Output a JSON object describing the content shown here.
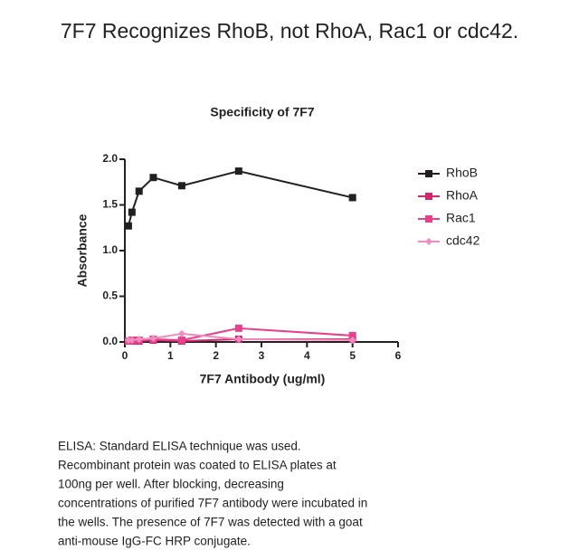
{
  "header": {
    "title": "7F7 Recognizes RhoB, not RhoA, Rac1 or cdc42."
  },
  "chart_data": {
    "type": "line",
    "title": "Specificity of 7F7",
    "x_label": "7F7 Antibody (ug/ml)",
    "y_label": "Absorbance",
    "x": [
      0.078,
      0.156,
      0.3125,
      0.625,
      1.25,
      2.5,
      5
    ],
    "series": [
      {
        "name": "RhoB",
        "color": "#231f20",
        "marker": "square",
        "values": [
          1.27,
          1.42,
          1.65,
          1.8,
          1.71,
          1.87,
          1.58
        ]
      },
      {
        "name": "RhoA",
        "color": "#d6246e",
        "marker": "square",
        "values": [
          0.01,
          0.01,
          0.01,
          0.02,
          0.01,
          0.03,
          0.03
        ]
      },
      {
        "name": "Rac1",
        "color": "#e8408a",
        "marker": "square",
        "values": [
          0.01,
          0.02,
          0.02,
          0.03,
          0.02,
          0.15,
          0.07
        ]
      },
      {
        "name": "cdc42",
        "color": "#f08cbe",
        "marker": "diamond",
        "values": [
          0.02,
          0.02,
          0.03,
          0.04,
          0.09,
          0.03,
          0.02
        ]
      }
    ],
    "xlim": [
      0,
      6
    ],
    "xticks": [
      0,
      1,
      2,
      3,
      4,
      5,
      6
    ],
    "ylim": [
      0,
      2
    ],
    "yticks": [
      {
        "value": 0,
        "label": "0.0"
      },
      {
        "value": 0.5,
        "label": "0.5"
      },
      {
        "value": 1,
        "label": "1.0"
      },
      {
        "value": 1.5,
        "label": "1.5"
      },
      {
        "value": 2,
        "label": "2.0"
      }
    ],
    "grid": false,
    "legend": "right"
  },
  "caption": [
    "ELISA:  Standard ELISA technique was used.",
    "Recombinant protein was coated to ELISA plates at",
    "100ng per well.  After blocking, decreasing",
    "concentrations of purified 7F7 antibody were incubated in",
    "the wells.  The presence of 7F7 was detected with a goat",
    "anti-mouse IgG-FC HRP conjugate."
  ]
}
